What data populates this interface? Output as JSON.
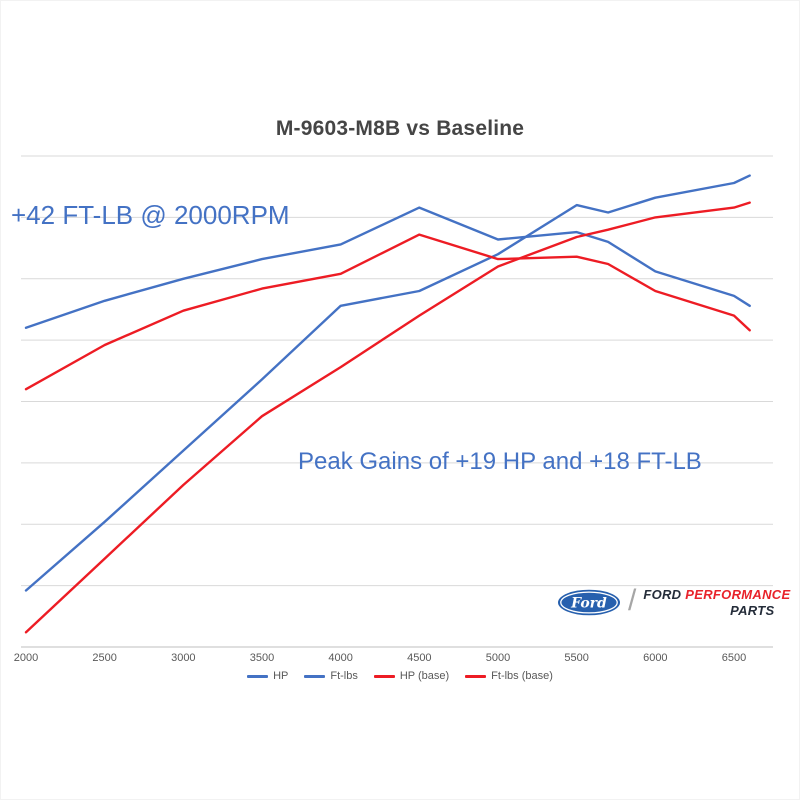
{
  "colors": {
    "line_blue": "#4472c4",
    "line_red": "#ed1c24",
    "annotation_blue": "#4472c4",
    "title_text": "#454545",
    "axis_text": "#595959",
    "gridline": "#d9d9d9",
    "axis_line": "#bfbfbf",
    "background": "#ffffff"
  },
  "chart_data": {
    "type": "line",
    "title": "M-9603-M8B vs Baseline",
    "xlabel": "",
    "ylabel": "",
    "x_unit": "RPM",
    "y_axis_labels_visible": false,
    "y_scale_note": "no y-axis labels shown; values are relative 0-100 of plot height",
    "ylim": [
      0,
      100
    ],
    "xlim": [
      2000,
      6700
    ],
    "grid": "horizontal",
    "legend_position": "bottom",
    "x": [
      2000,
      2500,
      3000,
      3500,
      4000,
      4500,
      5000,
      5500,
      5700,
      6000,
      6500,
      6600
    ],
    "xticks": [
      2000,
      2500,
      3000,
      3500,
      4000,
      4500,
      5000,
      5500,
      6000,
      6500
    ],
    "series": [
      {
        "name": "HP",
        "color": "#4472c4",
        "values": [
          11.5,
          25.5,
          40,
          54.5,
          69.5,
          72.5,
          80,
          90,
          88.5,
          91.5,
          94.5,
          96
        ]
      },
      {
        "name": "Ft-lbs",
        "color": "#4472c4",
        "values": [
          65,
          70.5,
          75,
          79,
          82,
          89.5,
          83,
          84.5,
          82.5,
          76.5,
          71.5,
          69.5
        ]
      },
      {
        "name": "HP (base)",
        "color": "#ed1c24",
        "values": [
          3,
          18,
          33,
          47,
          57,
          67.5,
          77.5,
          83.5,
          85,
          87.5,
          89.5,
          90.5
        ]
      },
      {
        "name": "Ft-lbs (base)",
        "color": "#ed1c24",
        "values": [
          52.5,
          61.5,
          68.5,
          73,
          76,
          84,
          79,
          79.5,
          78,
          72.5,
          67.5,
          64.5
        ]
      }
    ],
    "annotations": [
      {
        "text": "+42 FT-LB @ 2000RPM"
      },
      {
        "text": "Peak Gains of +19 HP and +18 FT-LB"
      }
    ]
  },
  "branding": {
    "ford_oval_text": "Ford",
    "oval_color": "#2760ae",
    "line1_part1": "FORD",
    "line1_part2": "PERFORMANCE",
    "line2": "PARTS",
    "text_color": "#252d3a",
    "performance_color": "#e8232b"
  }
}
